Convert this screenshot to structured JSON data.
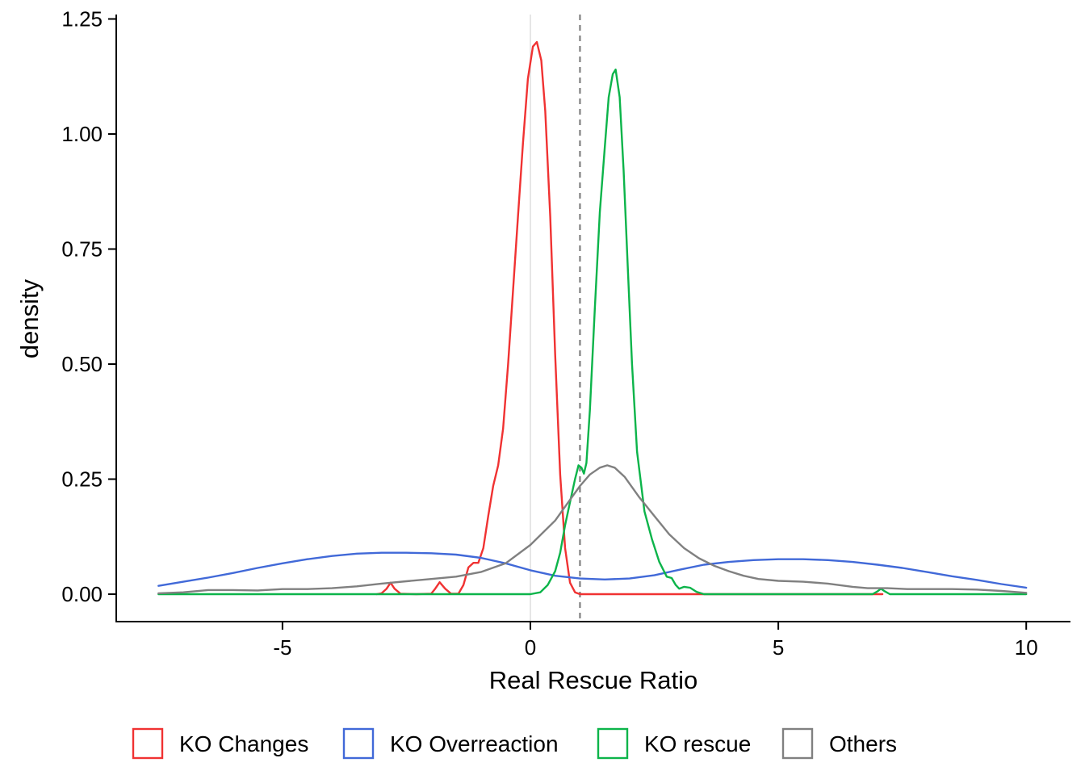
{
  "chart_data": {
    "type": "line",
    "xlabel": "Real Rescue Ratio",
    "ylabel": "density",
    "xlim": [
      -8.5,
      10.9
    ],
    "ylim": [
      -0.06,
      1.26
    ],
    "xticks": [
      -5,
      0,
      5,
      10
    ],
    "yticks": [
      0.0,
      0.25,
      0.5,
      0.75,
      1.0,
      1.25
    ],
    "xtick_labels": [
      "-5",
      "0",
      "5",
      "10"
    ],
    "ytick_labels": [
      "0.00",
      "0.25",
      "0.50",
      "0.75",
      "1.00",
      "1.25"
    ],
    "grid": false,
    "legend_position": "bottom",
    "reference_lines": [
      {
        "axis": "x",
        "value": 0,
        "style": "solid",
        "color": "#d9d9d9"
      },
      {
        "axis": "x",
        "value": 1,
        "style": "dashed",
        "color": "#808080"
      }
    ],
    "series": [
      {
        "name": "KO Changes",
        "color": "#f03232",
        "points": [
          [
            -3.1,
            0
          ],
          [
            -3.0,
            0.002
          ],
          [
            -2.9,
            0.012
          ],
          [
            -2.82,
            0.025
          ],
          [
            -2.74,
            0.012
          ],
          [
            -2.62,
            0.001
          ],
          [
            -2.3,
            0
          ],
          [
            -2.0,
            0.001
          ],
          [
            -1.92,
            0.012
          ],
          [
            -1.83,
            0.026
          ],
          [
            -1.72,
            0.012
          ],
          [
            -1.6,
            0.001
          ],
          [
            -1.45,
            0.001
          ],
          [
            -1.35,
            0.02
          ],
          [
            -1.25,
            0.058
          ],
          [
            -1.15,
            0.068
          ],
          [
            -1.05,
            0.068
          ],
          [
            -0.95,
            0.1
          ],
          [
            -0.85,
            0.17
          ],
          [
            -0.75,
            0.235
          ],
          [
            -0.65,
            0.28
          ],
          [
            -0.55,
            0.36
          ],
          [
            -0.45,
            0.5
          ],
          [
            -0.35,
            0.66
          ],
          [
            -0.25,
            0.82
          ],
          [
            -0.15,
            0.98
          ],
          [
            -0.05,
            1.12
          ],
          [
            0.05,
            1.19
          ],
          [
            0.13,
            1.2
          ],
          [
            0.22,
            1.16
          ],
          [
            0.3,
            1.05
          ],
          [
            0.4,
            0.82
          ],
          [
            0.5,
            0.52
          ],
          [
            0.6,
            0.26
          ],
          [
            0.7,
            0.1
          ],
          [
            0.8,
            0.025
          ],
          [
            0.9,
            0.004
          ],
          [
            1.0,
            0
          ],
          [
            7.1,
            0
          ]
        ]
      },
      {
        "name": "KO Overreaction",
        "color": "#4169d8",
        "points": [
          [
            -7.5,
            0.018
          ],
          [
            -7,
            0.027
          ],
          [
            -6.5,
            0.036
          ],
          [
            -6,
            0.046
          ],
          [
            -5.5,
            0.057
          ],
          [
            -5,
            0.067
          ],
          [
            -4.5,
            0.076
          ],
          [
            -4,
            0.083
          ],
          [
            -3.5,
            0.088
          ],
          [
            -3,
            0.09
          ],
          [
            -2.5,
            0.09
          ],
          [
            -2,
            0.089
          ],
          [
            -1.5,
            0.086
          ],
          [
            -1,
            0.079
          ],
          [
            -0.5,
            0.067
          ],
          [
            0,
            0.052
          ],
          [
            0.5,
            0.04
          ],
          [
            1,
            0.034
          ],
          [
            1.5,
            0.032
          ],
          [
            2,
            0.034
          ],
          [
            2.5,
            0.041
          ],
          [
            3,
            0.053
          ],
          [
            3.5,
            0.064
          ],
          [
            4,
            0.07
          ],
          [
            4.5,
            0.074
          ],
          [
            5,
            0.076
          ],
          [
            5.5,
            0.076
          ],
          [
            6,
            0.074
          ],
          [
            6.5,
            0.07
          ],
          [
            7,
            0.064
          ],
          [
            7.5,
            0.057
          ],
          [
            8,
            0.048
          ],
          [
            8.5,
            0.039
          ],
          [
            9,
            0.031
          ],
          [
            9.5,
            0.022
          ],
          [
            10,
            0.014
          ]
        ]
      },
      {
        "name": "KO rescue",
        "color": "#0cb44a",
        "points": [
          [
            -7.5,
            0
          ],
          [
            0,
            0
          ],
          [
            0.2,
            0.004
          ],
          [
            0.35,
            0.02
          ],
          [
            0.5,
            0.05
          ],
          [
            0.6,
            0.09
          ],
          [
            0.7,
            0.15
          ],
          [
            0.8,
            0.2
          ],
          [
            0.9,
            0.25
          ],
          [
            0.97,
            0.28
          ],
          [
            1.03,
            0.275
          ],
          [
            1.08,
            0.262
          ],
          [
            1.13,
            0.285
          ],
          [
            1.2,
            0.4
          ],
          [
            1.3,
            0.62
          ],
          [
            1.4,
            0.83
          ],
          [
            1.5,
            0.97
          ],
          [
            1.58,
            1.08
          ],
          [
            1.66,
            1.13
          ],
          [
            1.72,
            1.14
          ],
          [
            1.8,
            1.08
          ],
          [
            1.88,
            0.92
          ],
          [
            1.96,
            0.72
          ],
          [
            2.05,
            0.5
          ],
          [
            2.15,
            0.31
          ],
          [
            2.3,
            0.18
          ],
          [
            2.45,
            0.12
          ],
          [
            2.6,
            0.07
          ],
          [
            2.75,
            0.038
          ],
          [
            2.85,
            0.035
          ],
          [
            2.93,
            0.02
          ],
          [
            3.0,
            0.012
          ],
          [
            3.1,
            0.016
          ],
          [
            3.22,
            0.014
          ],
          [
            3.35,
            0.005
          ],
          [
            3.5,
            0
          ],
          [
            6.9,
            0
          ],
          [
            7.0,
            0.006
          ],
          [
            7.07,
            0.012
          ],
          [
            7.15,
            0.006
          ],
          [
            7.25,
            0
          ],
          [
            10,
            0
          ]
        ]
      },
      {
        "name": "Others",
        "color": "#808080",
        "points": [
          [
            -7.5,
            0.002
          ],
          [
            -7,
            0.004
          ],
          [
            -6.5,
            0.009
          ],
          [
            -6,
            0.009
          ],
          [
            -5.5,
            0.008
          ],
          [
            -5,
            0.011
          ],
          [
            -4.5,
            0.011
          ],
          [
            -4,
            0.013
          ],
          [
            -3.5,
            0.017
          ],
          [
            -3,
            0.023
          ],
          [
            -2.5,
            0.028
          ],
          [
            -2,
            0.033
          ],
          [
            -1.5,
            0.038
          ],
          [
            -1,
            0.048
          ],
          [
            -0.5,
            0.067
          ],
          [
            0,
            0.107
          ],
          [
            0.5,
            0.16
          ],
          [
            0.8,
            0.205
          ],
          [
            1.0,
            0.235
          ],
          [
            1.2,
            0.26
          ],
          [
            1.4,
            0.275
          ],
          [
            1.55,
            0.28
          ],
          [
            1.7,
            0.275
          ],
          [
            1.9,
            0.255
          ],
          [
            2.2,
            0.21
          ],
          [
            2.5,
            0.17
          ],
          [
            2.8,
            0.13
          ],
          [
            3.1,
            0.1
          ],
          [
            3.4,
            0.078
          ],
          [
            3.7,
            0.062
          ],
          [
            4,
            0.05
          ],
          [
            4.3,
            0.04
          ],
          [
            4.6,
            0.033
          ],
          [
            5,
            0.029
          ],
          [
            5.5,
            0.027
          ],
          [
            6,
            0.023
          ],
          [
            6.5,
            0.016
          ],
          [
            6.8,
            0.013
          ],
          [
            7.2,
            0.013
          ],
          [
            7.6,
            0.011
          ],
          [
            8,
            0.011
          ],
          [
            8.5,
            0.011
          ],
          [
            9,
            0.01
          ],
          [
            9.5,
            0.007
          ],
          [
            10,
            0.003
          ]
        ]
      }
    ]
  }
}
